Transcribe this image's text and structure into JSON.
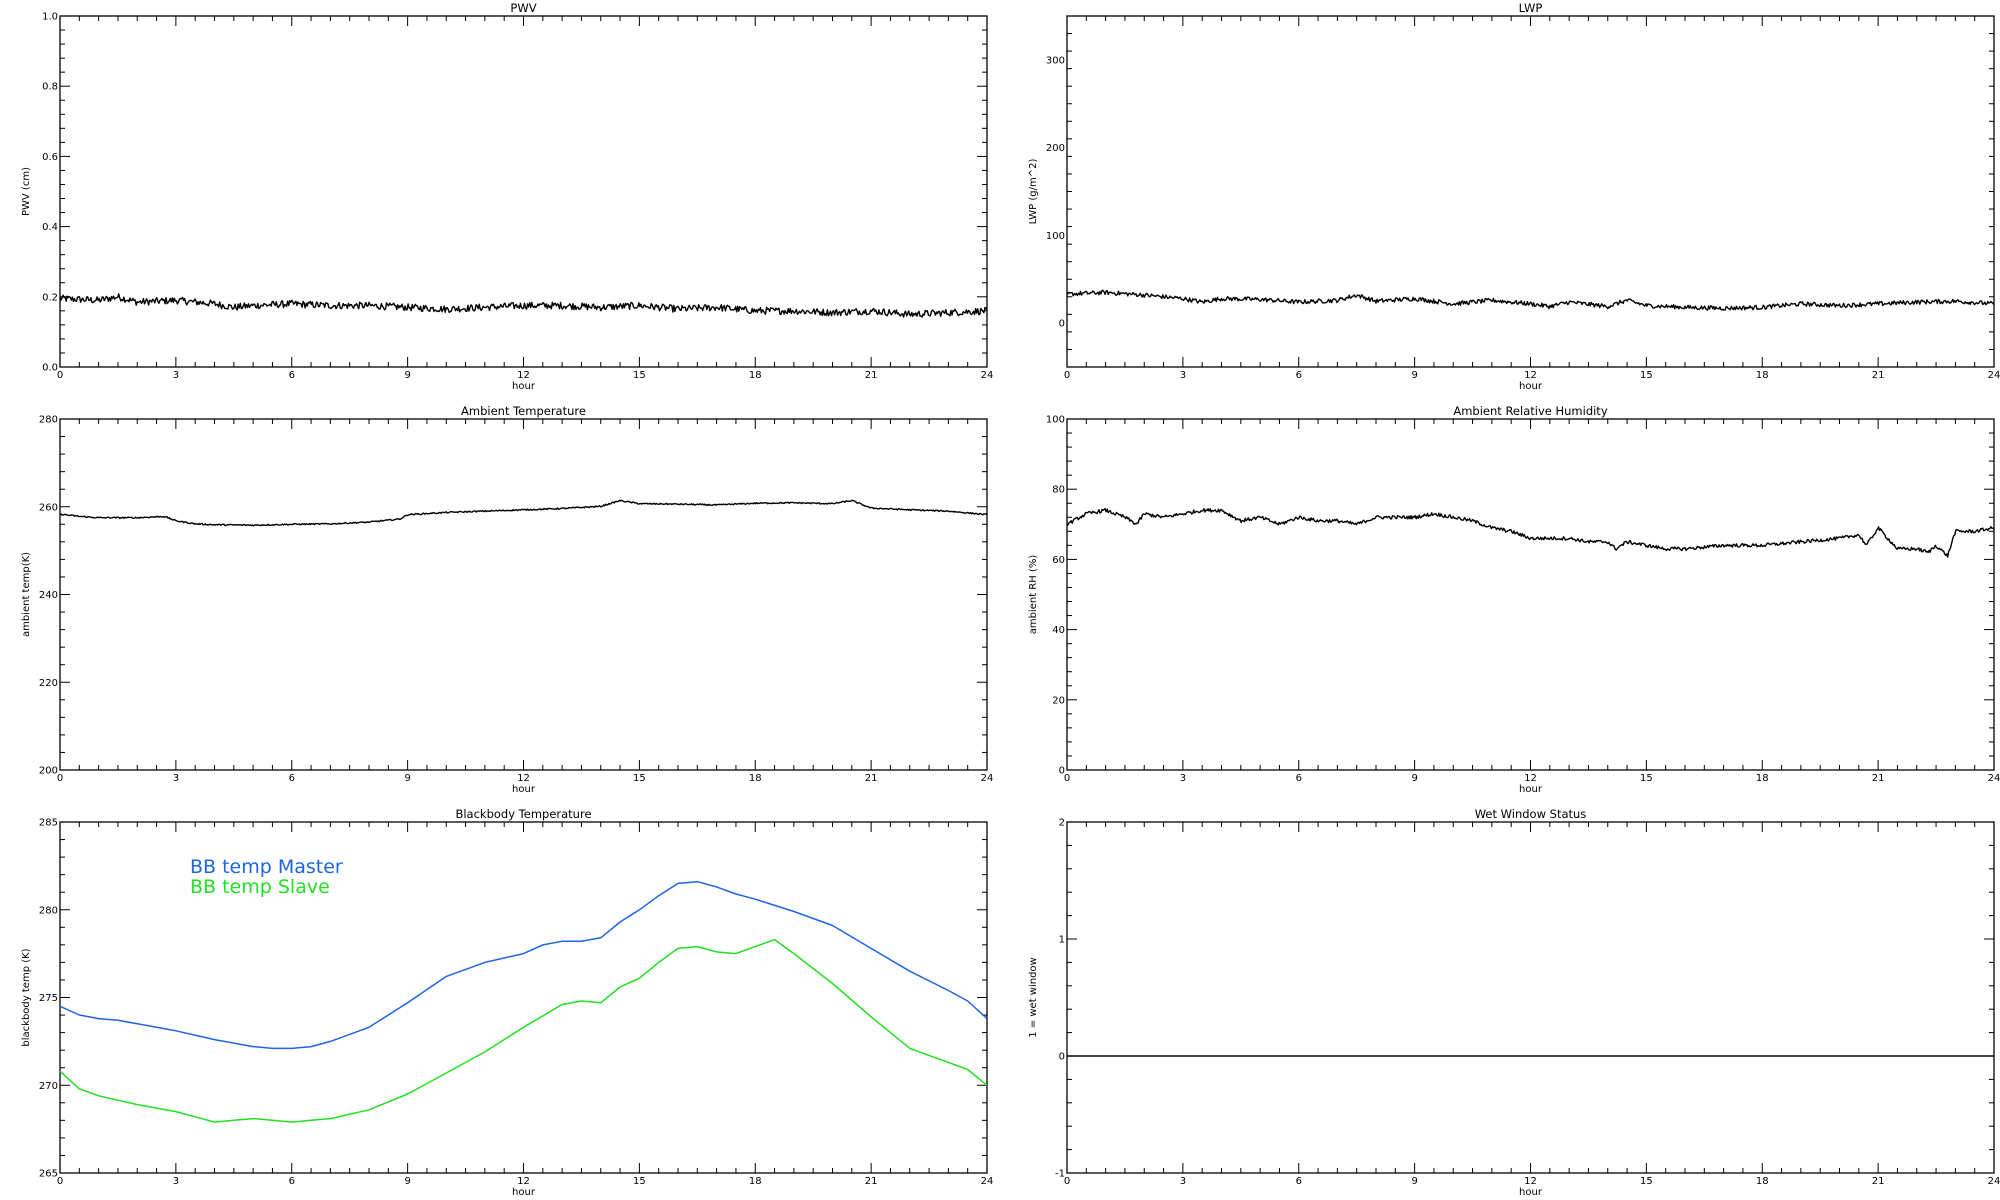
{
  "chart_data": [
    {
      "id": "pwv",
      "type": "line",
      "title": "PWV",
      "xlabel": "hour",
      "ylabel": "PWV (cm)",
      "xlim": [
        0,
        24
      ],
      "ylim": [
        0.0,
        1.0
      ],
      "xticks": [
        0,
        3,
        6,
        9,
        12,
        15,
        18,
        21,
        24
      ],
      "xtick_labels": [
        "0",
        "3",
        "6",
        "9",
        "12",
        "15",
        "18",
        "21",
        "24"
      ],
      "yticks": [
        0.0,
        0.2,
        0.4,
        0.6,
        0.8,
        1.0
      ],
      "ytick_labels": [
        "0.0",
        "0.2",
        "0.4",
        "0.6",
        "0.8",
        "1.0"
      ],
      "series": [
        {
          "color": "#000000",
          "noise": 0.01,
          "x": [
            0,
            1,
            1.5,
            2,
            3,
            3.5,
            4,
            4.5,
            5,
            6,
            7,
            8,
            9,
            10,
            11,
            12,
            13,
            14,
            15,
            16,
            17,
            18,
            19,
            20,
            21,
            22,
            23,
            24
          ],
          "y": [
            0.195,
            0.19,
            0.2,
            0.185,
            0.19,
            0.185,
            0.18,
            0.17,
            0.175,
            0.18,
            0.175,
            0.175,
            0.17,
            0.165,
            0.17,
            0.175,
            0.175,
            0.17,
            0.175,
            0.165,
            0.17,
            0.16,
            0.16,
            0.155,
            0.16,
            0.15,
            0.155,
            0.16
          ]
        }
      ]
    },
    {
      "id": "lwp",
      "type": "line",
      "title": "LWP",
      "xlabel": "hour",
      "ylabel": "LWP (g/m^2)",
      "xlim": [
        0,
        24
      ],
      "ylim": [
        -50,
        350
      ],
      "xticks": [
        0,
        3,
        6,
        9,
        12,
        15,
        18,
        21,
        24
      ],
      "xtick_labels": [
        "0",
        "3",
        "6",
        "9",
        "12",
        "15",
        "18",
        "21",
        "24"
      ],
      "yticks": [
        0,
        100,
        200,
        300
      ],
      "ytick_labels": [
        "0",
        "100",
        "200",
        "300"
      ],
      "series": [
        {
          "color": "#000000",
          "noise": 2.5,
          "x": [
            0,
            1,
            2,
            3,
            3.5,
            4,
            5,
            6,
            7,
            7.5,
            8,
            9,
            10,
            11,
            12,
            12.5,
            13,
            14,
            14.5,
            15,
            16,
            17,
            18,
            19,
            20,
            21,
            22,
            23,
            24
          ],
          "y": [
            33,
            35,
            32,
            28,
            24,
            28,
            27,
            24,
            26,
            32,
            25,
            28,
            22,
            26,
            22,
            19,
            24,
            19,
            26,
            20,
            18,
            17,
            18,
            22,
            20,
            22,
            24,
            25,
            22
          ]
        }
      ]
    },
    {
      "id": "ambient-temperature",
      "type": "line",
      "title": "Ambient Temperature",
      "xlabel": "hour",
      "ylabel": "ambient temp(K)",
      "xlim": [
        0,
        24
      ],
      "ylim": [
        200,
        280
      ],
      "xticks": [
        0,
        3,
        6,
        9,
        12,
        15,
        18,
        21,
        24
      ],
      "xtick_labels": [
        "0",
        "3",
        "6",
        "9",
        "12",
        "15",
        "18",
        "21",
        "24"
      ],
      "yticks": [
        200,
        220,
        240,
        260,
        280
      ],
      "ytick_labels": [
        "200",
        "220",
        "240",
        "260",
        "280"
      ],
      "series": [
        {
          "color": "#000000",
          "noise": 0.15,
          "x": [
            0,
            0.5,
            1,
            2,
            2.7,
            3,
            3.5,
            4,
            5,
            6,
            7,
            8,
            8.8,
            9,
            10,
            11,
            12,
            13,
            14,
            14.5,
            15,
            16,
            17,
            18,
            19,
            20,
            20.5,
            21,
            22,
            23,
            24
          ],
          "y": [
            258.3,
            257.8,
            257.5,
            257.5,
            257.8,
            256.8,
            256.1,
            255.9,
            255.8,
            256.0,
            256.1,
            256.5,
            257.2,
            258.2,
            258.7,
            259.0,
            259.3,
            259.6,
            260.1,
            261.4,
            260.7,
            260.6,
            260.4,
            260.8,
            260.9,
            260.7,
            261.4,
            259.7,
            259.3,
            259.0,
            258.2
          ]
        }
      ]
    },
    {
      "id": "ambient-relative-humidity",
      "type": "line",
      "title": "Ambient Relative Humidity",
      "xlabel": "hour",
      "ylabel": "ambient RH (%)",
      "xlim": [
        0,
        24
      ],
      "ylim": [
        0,
        100
      ],
      "xticks": [
        0,
        3,
        6,
        9,
        12,
        15,
        18,
        21,
        24
      ],
      "xtick_labels": [
        "0",
        "3",
        "6",
        "9",
        "12",
        "15",
        "18",
        "21",
        "24"
      ],
      "yticks": [
        0,
        20,
        40,
        60,
        80,
        100
      ],
      "ytick_labels": [
        "0",
        "20",
        "40",
        "60",
        "80",
        "100"
      ],
      "series": [
        {
          "color": "#000000",
          "noise": 0.5,
          "x": [
            0,
            0.5,
            1,
            1.5,
            1.8,
            2,
            2.5,
            3,
            3.5,
            4,
            4.5,
            5,
            5.5,
            6,
            6.5,
            7,
            7.5,
            8,
            8.5,
            9,
            9.5,
            10,
            10.5,
            11,
            11.5,
            12,
            12.5,
            13,
            13.5,
            14,
            14.2,
            14.5,
            15,
            15.5,
            16,
            17,
            18,
            19,
            20,
            20.5,
            20.7,
            21,
            21.5,
            22,
            22.3,
            22.5,
            22.8,
            23,
            23.5,
            24
          ],
          "y": [
            70,
            73,
            74,
            72,
            70,
            73,
            72,
            73,
            74,
            74,
            71,
            72,
            70,
            72,
            71,
            71,
            70,
            72,
            72,
            72,
            73,
            72,
            71,
            69,
            68,
            66,
            66,
            66,
            65,
            65,
            63,
            65,
            64,
            63,
            63,
            64,
            64,
            65,
            66,
            67,
            64,
            69,
            63,
            63,
            62,
            64,
            61,
            68,
            68,
            69
          ]
        }
      ]
    },
    {
      "id": "blackbody-temperature",
      "type": "line",
      "title": "Blackbody Temperature",
      "xlabel": "hour",
      "ylabel": "blackbody temp (K)",
      "xlim": [
        0,
        24
      ],
      "ylim": [
        265,
        285
      ],
      "xticks": [
        0,
        3,
        6,
        9,
        12,
        15,
        18,
        21,
        24
      ],
      "xtick_labels": [
        "0",
        "3",
        "6",
        "9",
        "12",
        "15",
        "18",
        "21",
        "24"
      ],
      "yticks": [
        265,
        270,
        275,
        280,
        285
      ],
      "ytick_labels": [
        "265",
        "270",
        "275",
        "280",
        "285"
      ],
      "legend": "top-left",
      "series": [
        {
          "name": "BB temp Master",
          "color": "#1e64e6",
          "noise": 0,
          "x": [
            0,
            0.5,
            1,
            1.5,
            2,
            3,
            4,
            5,
            5.5,
            6,
            6.5,
            7,
            8,
            9,
            10,
            11,
            12,
            12.5,
            13,
            13.5,
            14,
            14.5,
            15,
            15.5,
            16,
            16.5,
            17,
            17.5,
            18,
            19,
            20,
            21,
            22,
            23,
            23.5,
            24
          ],
          "y": [
            274.5,
            274.0,
            273.8,
            273.7,
            273.5,
            273.1,
            272.6,
            272.2,
            272.1,
            272.1,
            272.2,
            272.5,
            273.3,
            274.7,
            276.2,
            277.0,
            277.5,
            278.0,
            278.2,
            278.2,
            278.4,
            279.3,
            280.0,
            280.8,
            281.5,
            281.6,
            281.3,
            280.9,
            280.6,
            279.9,
            279.1,
            277.8,
            276.5,
            275.4,
            274.8,
            273.8
          ]
        },
        {
          "name": "BB temp Slave",
          "color": "#22e022",
          "noise": 0,
          "x": [
            0,
            0.5,
            1,
            2,
            3,
            3.5,
            4,
            4.5,
            5,
            5.5,
            6,
            6.5,
            7,
            8,
            9,
            10,
            11,
            12,
            13,
            13.5,
            14,
            14.5,
            15,
            15.5,
            16,
            16.5,
            17,
            17.5,
            18,
            18.5,
            19,
            20,
            21,
            22,
            23,
            23.5,
            24
          ],
          "y": [
            270.8,
            269.8,
            269.4,
            268.9,
            268.5,
            268.2,
            267.9,
            268.0,
            268.1,
            268.0,
            267.9,
            268.0,
            268.1,
            268.6,
            269.5,
            270.7,
            271.9,
            273.3,
            274.6,
            274.8,
            274.7,
            275.6,
            276.1,
            277.0,
            277.8,
            277.9,
            277.6,
            277.5,
            277.9,
            278.3,
            277.5,
            275.8,
            273.9,
            272.1,
            271.3,
            270.9,
            270.0
          ]
        }
      ]
    },
    {
      "id": "wet-window-status",
      "type": "line",
      "title": "Wet Window Status",
      "xlabel": "hour",
      "ylabel": "1 = wet window",
      "xlim": [
        0,
        24
      ],
      "ylim": [
        -1,
        2
      ],
      "xticks": [
        0,
        3,
        6,
        9,
        12,
        15,
        18,
        21,
        24
      ],
      "xtick_labels": [
        "0",
        "3",
        "6",
        "9",
        "12",
        "15",
        "18",
        "21",
        "24"
      ],
      "yticks": [
        -1,
        0,
        1,
        2
      ],
      "ytick_labels": [
        "-1",
        "0",
        "1",
        "2"
      ],
      "series": [
        {
          "color": "#000000",
          "noise": 0,
          "x": [
            0,
            24
          ],
          "y": [
            0,
            0
          ]
        }
      ]
    }
  ]
}
